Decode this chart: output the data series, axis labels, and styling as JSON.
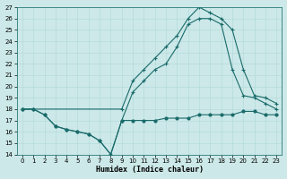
{
  "xlabel": "Humidex (Indice chaleur)",
  "bg_color": "#cce8e8",
  "line_color": "#1a6b6b",
  "xlim": [
    -0.5,
    23.5
  ],
  "ylim": [
    14,
    27
  ],
  "yticks": [
    14,
    15,
    16,
    17,
    18,
    19,
    20,
    21,
    22,
    23,
    24,
    25,
    26,
    27
  ],
  "xticks": [
    0,
    1,
    2,
    3,
    4,
    5,
    6,
    7,
    8,
    9,
    10,
    11,
    12,
    13,
    14,
    15,
    16,
    17,
    18,
    19,
    20,
    21,
    22,
    23
  ],
  "line_min_x": [
    0,
    1,
    2,
    3,
    4,
    5,
    6,
    7,
    8,
    9,
    10,
    11,
    12,
    13,
    14,
    15,
    16,
    17,
    18,
    19,
    20,
    21,
    22,
    23
  ],
  "line_min_y": [
    18.0,
    18.0,
    17.5,
    16.5,
    16.2,
    16.0,
    15.8,
    15.2,
    14.0,
    17.0,
    17.0,
    17.0,
    17.0,
    17.2,
    17.2,
    17.2,
    17.5,
    17.5,
    17.5,
    17.5,
    17.8,
    17.8,
    17.5,
    17.5
  ],
  "line_mid_x": [
    0,
    1,
    2,
    3,
    4,
    5,
    6,
    7,
    8,
    9,
    10,
    11,
    12,
    13,
    14,
    15,
    16,
    17,
    18,
    19,
    20,
    21,
    22,
    23
  ],
  "line_mid_y": [
    18.0,
    18.0,
    17.5,
    16.5,
    16.2,
    16.0,
    15.8,
    15.2,
    14.0,
    17.0,
    19.5,
    20.5,
    21.5,
    22.0,
    23.5,
    25.5,
    26.0,
    26.0,
    25.5,
    21.5,
    19.2,
    19.0,
    18.5,
    18.0
  ],
  "line_max_x": [
    0,
    9,
    10,
    11,
    12,
    13,
    14,
    15,
    16,
    17,
    18,
    19,
    20,
    21,
    22,
    23
  ],
  "line_max_y": [
    18.0,
    18.0,
    20.5,
    21.5,
    22.5,
    23.5,
    24.5,
    26.0,
    27.0,
    26.5,
    26.0,
    25.0,
    21.5,
    19.2,
    19.0,
    18.5
  ]
}
